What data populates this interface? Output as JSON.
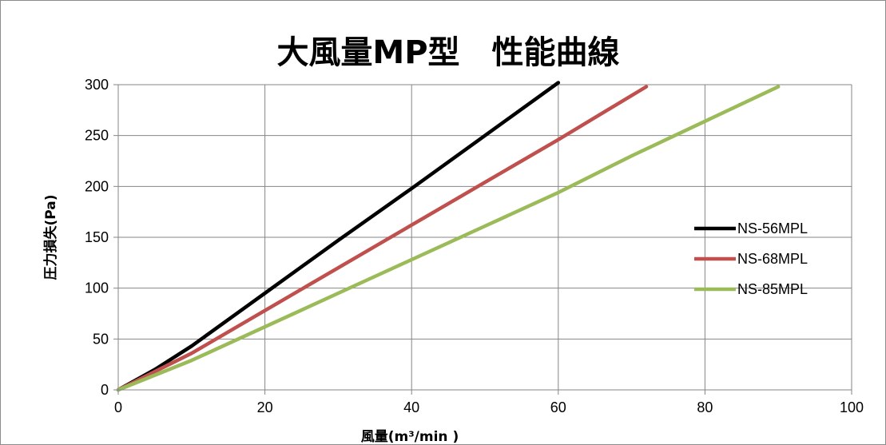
{
  "chart_data": {
    "type": "line",
    "title": "大風量MP型　性能曲線",
    "xlabel": "風量(m³/min )",
    "ylabel": "圧力損失(Pa)",
    "xlim": [
      0,
      100
    ],
    "ylim": [
      0,
      300
    ],
    "x_ticks": [
      "0",
      "20",
      "40",
      "60",
      "80",
      "100"
    ],
    "y_ticks": [
      "0",
      "50",
      "100",
      "150",
      "200",
      "250",
      "300"
    ],
    "x_tick_values": [
      0,
      20,
      40,
      60,
      80,
      100
    ],
    "y_tick_values": [
      0,
      50,
      100,
      150,
      200,
      250,
      300
    ],
    "grid": true,
    "legend_position": "right",
    "series": [
      {
        "name": "NS-56MPL",
        "color": "#000000",
        "points": [
          [
            0,
            0
          ],
          [
            5,
            20
          ],
          [
            10,
            43
          ],
          [
            20,
            95
          ],
          [
            30,
            147
          ],
          [
            40,
            198
          ],
          [
            50,
            250
          ],
          [
            60,
            302
          ]
        ]
      },
      {
        "name": "NS-68MPL",
        "color": "#c0504d",
        "points": [
          [
            0,
            0
          ],
          [
            10,
            36
          ],
          [
            20,
            78
          ],
          [
            30,
            120
          ],
          [
            40,
            162
          ],
          [
            50,
            204
          ],
          [
            60,
            246
          ],
          [
            72,
            298
          ]
        ]
      },
      {
        "name": "NS-85MPL",
        "color": "#9bbb59",
        "points": [
          [
            0,
            0
          ],
          [
            10,
            29
          ],
          [
            20,
            62
          ],
          [
            30,
            95
          ],
          [
            40,
            128
          ],
          [
            50,
            161
          ],
          [
            60,
            194
          ],
          [
            70,
            230
          ],
          [
            80,
            264
          ],
          [
            90,
            298
          ]
        ]
      }
    ]
  }
}
